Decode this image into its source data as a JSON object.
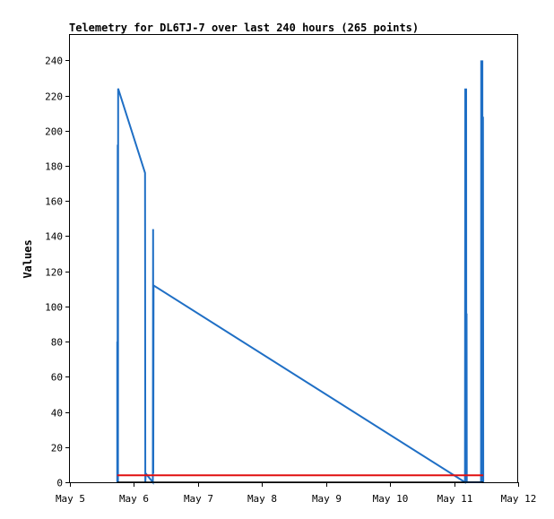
{
  "chart_data": {
    "type": "line",
    "title": "Telemetry for DL6TJ-7 over last 240 hours (265 points)",
    "xlabel": "",
    "ylabel": "Values",
    "ylim": [
      0,
      255
    ],
    "yticks": [
      0,
      20,
      40,
      60,
      80,
      100,
      120,
      140,
      160,
      180,
      200,
      220,
      240
    ],
    "xlim": [
      "2023-05-05T00:00",
      "2023-05-12T00:00"
    ],
    "xticks": [
      {
        "label": "May 5",
        "x": "2023-05-05T00:00"
      },
      {
        "label": "May 6",
        "x": "2023-05-06T00:00"
      },
      {
        "label": "May 7",
        "x": "2023-05-07T00:00"
      },
      {
        "label": "May 8",
        "x": "2023-05-08T00:00"
      },
      {
        "label": "May 9",
        "x": "2023-05-09T00:00"
      },
      {
        "label": "May 10",
        "x": "2023-05-10T00:00"
      },
      {
        "label": "May 11",
        "x": "2023-05-11T00:00"
      },
      {
        "label": "May 12",
        "x": "2023-05-12T00:00"
      }
    ],
    "grid": false,
    "legend": "none",
    "series": [
      {
        "color": "#1f6fc5",
        "points": [
          [
            "2023-05-05T17:45",
            0
          ],
          [
            "2023-05-05T17:45",
            80
          ],
          [
            "2023-05-05T17:50",
            0
          ],
          [
            "2023-05-05T17:55",
            192
          ],
          [
            "2023-05-05T18:00",
            0
          ],
          [
            "2023-05-05T18:05",
            224
          ],
          [
            "2023-05-06T04:10",
            176
          ],
          [
            "2023-05-06T04:15",
            0
          ],
          [
            "2023-05-06T04:25",
            5
          ],
          [
            "2023-05-06T07:05",
            0
          ],
          [
            "2023-05-06T07:10",
            144
          ],
          [
            "2023-05-06T07:15",
            5
          ],
          [
            "2023-05-06T07:20",
            112
          ],
          [
            "2023-05-11T04:05",
            0
          ],
          [
            "2023-05-11T04:10",
            224
          ],
          [
            "2023-05-11T04:15",
            0
          ],
          [
            "2023-05-11T04:20",
            224
          ],
          [
            "2023-05-11T04:25",
            0
          ],
          [
            "2023-05-11T04:30",
            224
          ],
          [
            "2023-05-11T04:35",
            0
          ],
          [
            "2023-05-11T04:40",
            96
          ],
          [
            "2023-05-11T04:45",
            0
          ],
          [
            "2023-05-11T10:05",
            0
          ],
          [
            "2023-05-11T10:10",
            240
          ],
          [
            "2023-05-11T10:15",
            0
          ],
          [
            "2023-05-11T10:20",
            240
          ],
          [
            "2023-05-11T10:25",
            0
          ],
          [
            "2023-05-11T10:35",
            240
          ],
          [
            "2023-05-11T10:40",
            0
          ],
          [
            "2023-05-11T10:50",
            208
          ],
          [
            "2023-05-11T10:55",
            0
          ]
        ]
      },
      {
        "color": "#e01010",
        "points": [
          [
            "2023-05-05T17:45",
            4
          ],
          [
            "2023-05-11T10:55",
            4
          ]
        ]
      },
      {
        "color": "#000000",
        "points": [
          [
            "2023-05-05T17:45",
            0
          ],
          [
            "2023-05-11T10:55",
            0
          ]
        ]
      }
    ]
  }
}
